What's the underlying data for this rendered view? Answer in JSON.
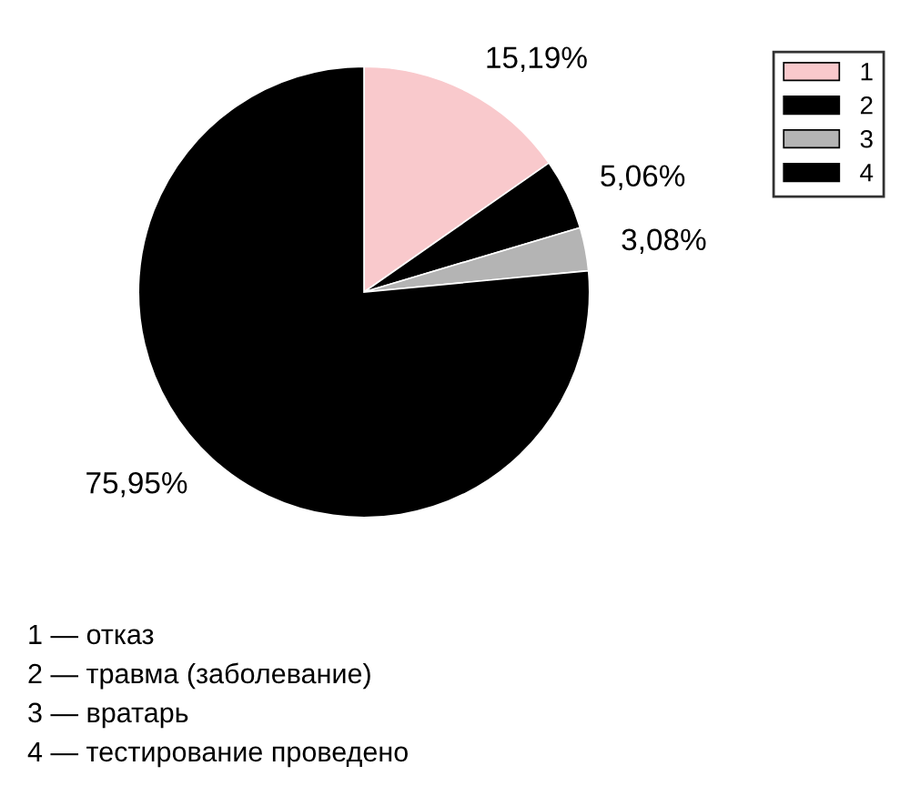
{
  "chart_data": {
    "type": "pie",
    "categories": [
      "1",
      "2",
      "3",
      "4"
    ],
    "values": [
      15.19,
      5.06,
      3.08,
      75.95
    ],
    "colors": [
      "#f9c9cc",
      "#000000",
      "#b4b4b4",
      "#000000"
    ],
    "value_labels": [
      "15,19%",
      "5,06%",
      "3,08%",
      "75,95%"
    ],
    "legend": "top right",
    "annotations": [
      "1 — отказ",
      "2 — травма (заболевание)",
      "3 — вратарь",
      "4 — тестирование проведено"
    ]
  }
}
